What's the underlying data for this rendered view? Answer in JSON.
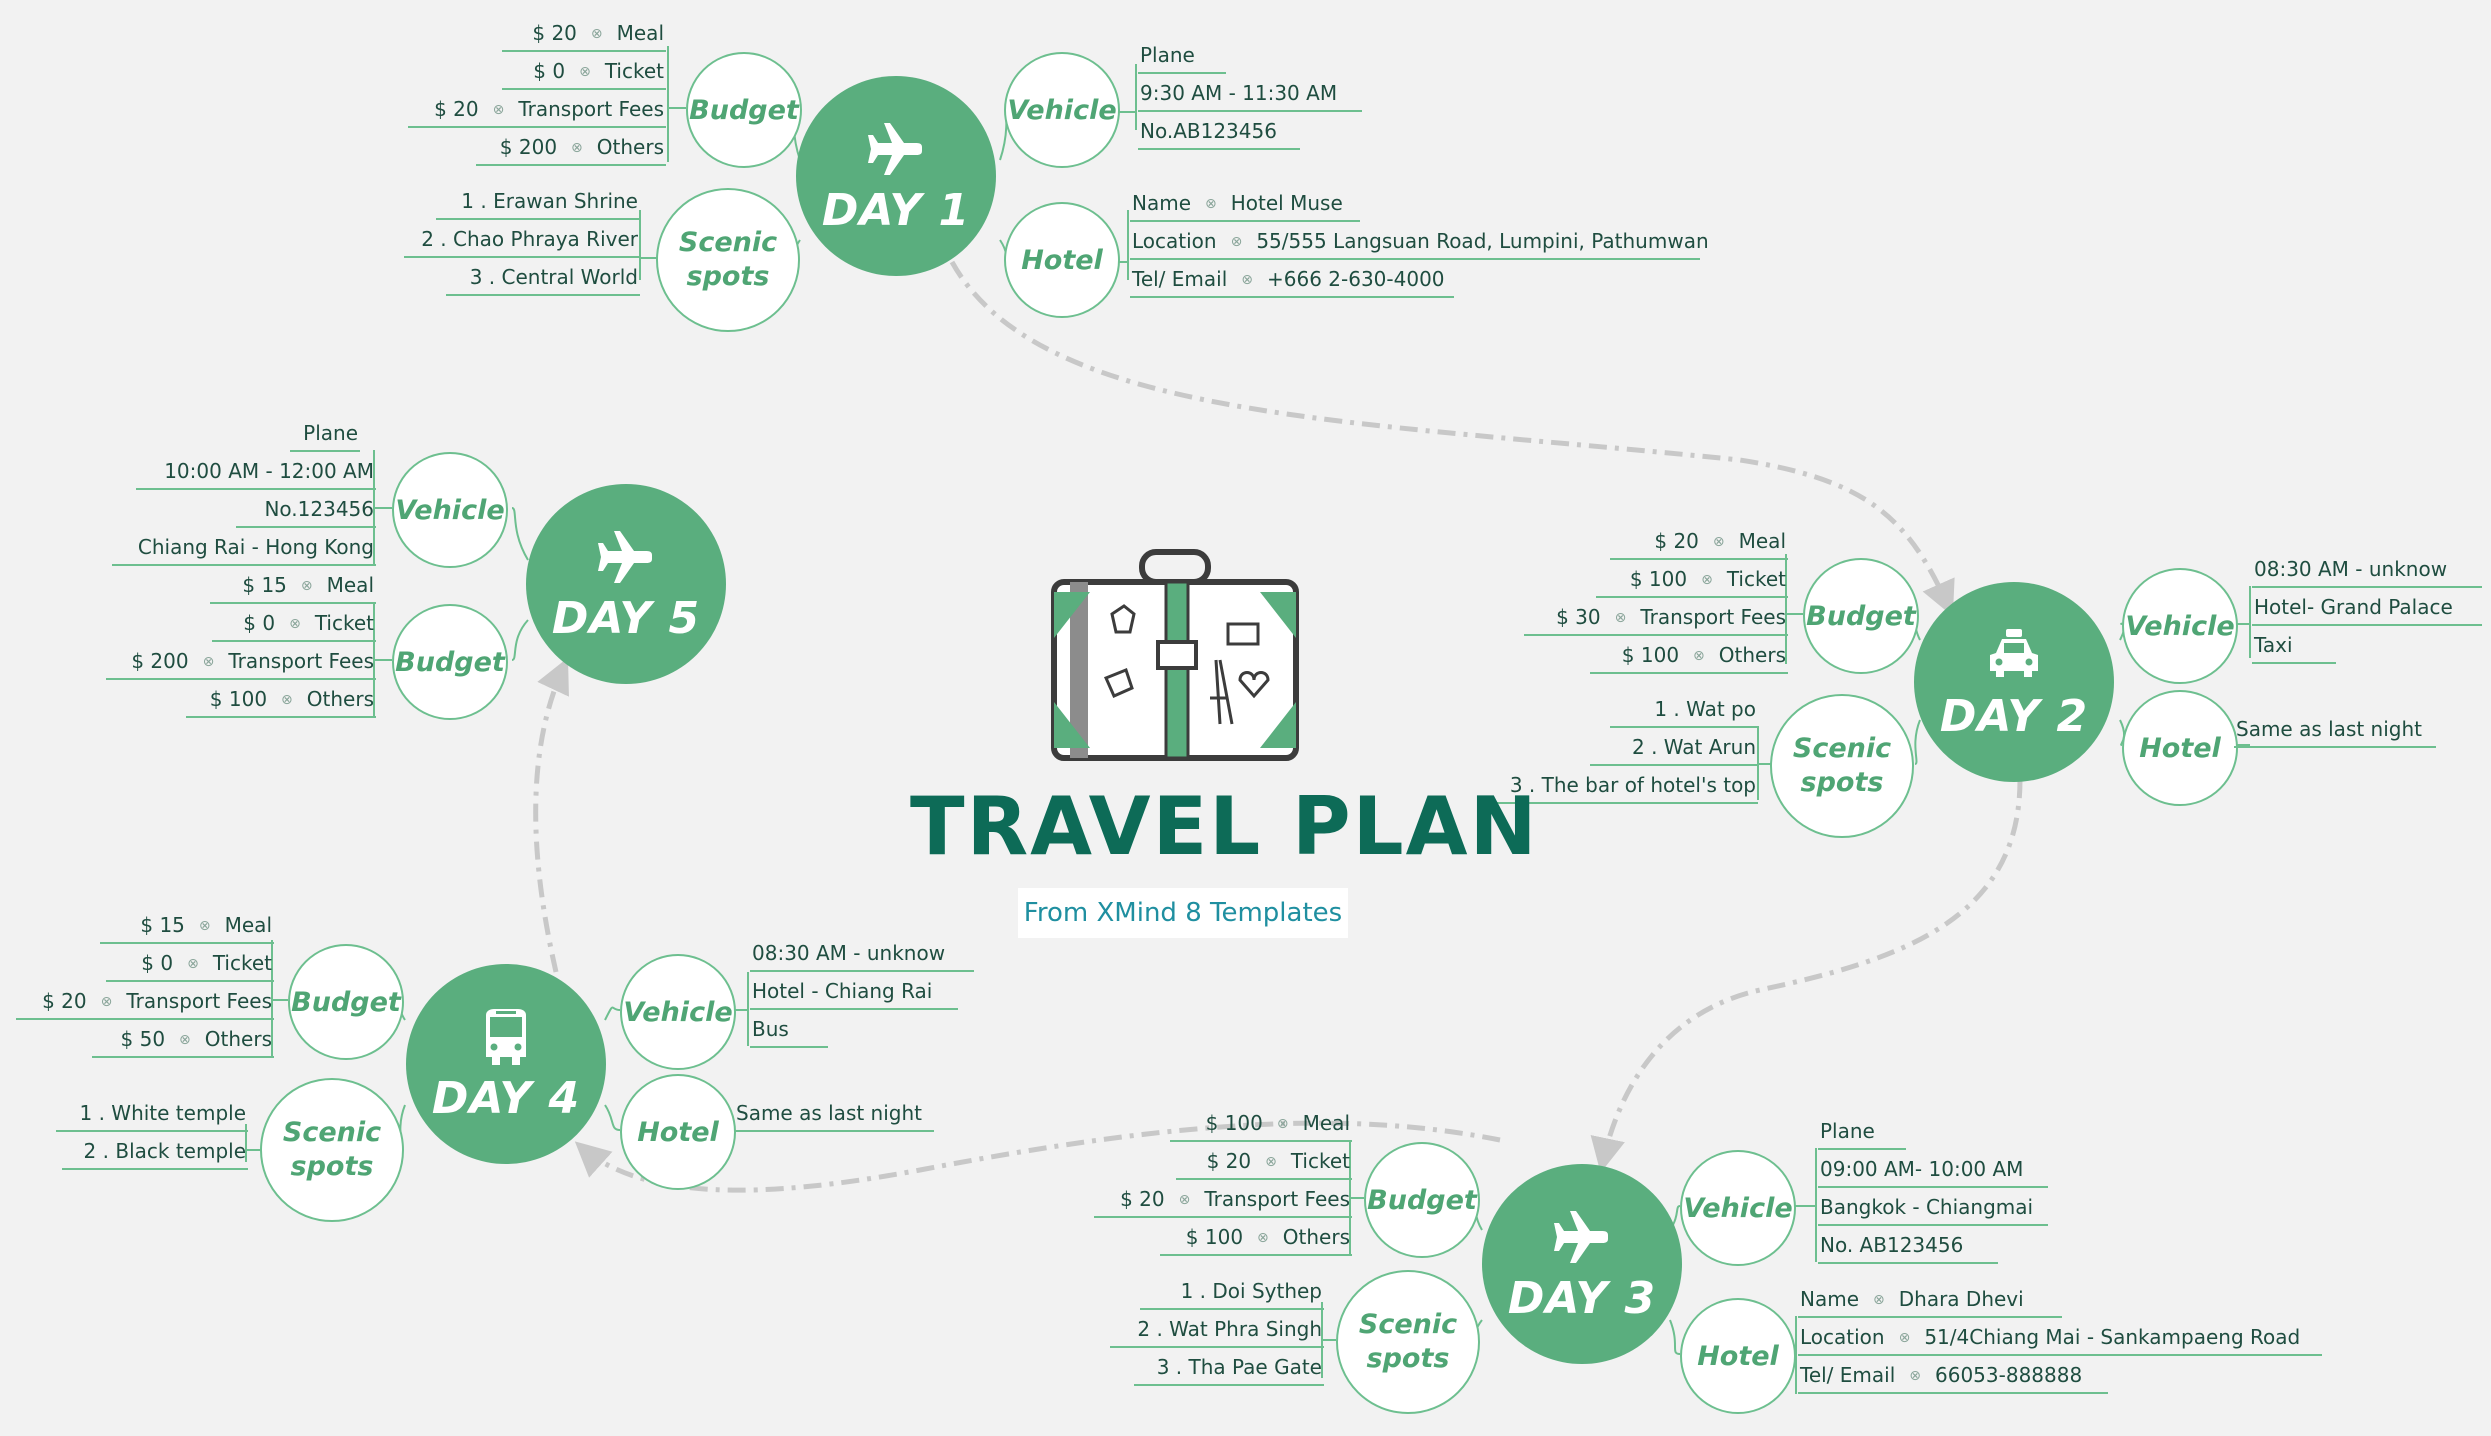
{
  "central": {
    "title": "TRAVEL PLAN",
    "subtitle": "From XMind 8 Templates",
    "icon": "suitcase-icon"
  },
  "colors": {
    "background": "#f2f2f2",
    "day_fill": "#5aae7e",
    "category_text": "#4fa574",
    "line": "#6dbf8f",
    "title": "#0d6b57",
    "subtitle": "#1f8fa0",
    "connector": "#c8c8c8"
  },
  "days": [
    {
      "label": "DAY 1",
      "icon": "plane-icon",
      "vehicle": {
        "label": "Vehicle",
        "items": [
          "Plane",
          "9:30 AM - 11:30 AM",
          "No.AB123456"
        ]
      },
      "hotel": {
        "label": "Hotel",
        "items": [
          [
            "Name",
            "Hotel Muse"
          ],
          [
            "Location",
            "55/555 Langsuan Road, Lumpini, Pathumwan"
          ],
          [
            "Tel/ Email",
            "+666 2-630-4000"
          ]
        ]
      },
      "budget": {
        "label": "Budget",
        "items": [
          [
            "$ 20",
            "Meal"
          ],
          [
            "$ 0",
            "Ticket"
          ],
          [
            "$ 20",
            "Transport Fees"
          ],
          [
            "$ 200",
            "Others"
          ]
        ]
      },
      "scenic": {
        "label_line1": "Scenic",
        "label_line2": "spots",
        "items": [
          "1 . Erawan Shrine",
          "2 . Chao Phraya River",
          "3 . Central World"
        ]
      }
    },
    {
      "label": "DAY 2",
      "icon": "taxi-icon",
      "vehicle": {
        "label": "Vehicle",
        "items": [
          "08:30 AM - unknow",
          "Hotel- Grand Palace",
          "Taxi"
        ]
      },
      "hotel": {
        "label": "Hotel",
        "items": [
          "Same as last night"
        ]
      },
      "budget": {
        "label": "Budget",
        "items": [
          [
            "$ 20",
            "Meal"
          ],
          [
            "$ 100",
            "Ticket"
          ],
          [
            "$ 30",
            "Transport Fees"
          ],
          [
            "$ 100",
            "Others"
          ]
        ]
      },
      "scenic": {
        "label_line1": "Scenic",
        "label_line2": "spots",
        "items": [
          "1 . Wat po",
          "2 . Wat Arun",
          "3 . The bar of hotel's top"
        ]
      }
    },
    {
      "label": "DAY 3",
      "icon": "plane-icon",
      "vehicle": {
        "label": "Vehicle",
        "items": [
          "Plane",
          "09:00 AM- 10:00 AM",
          "Bangkok - Chiangmai",
          "No. AB123456"
        ]
      },
      "hotel": {
        "label": "Hotel",
        "items": [
          [
            "Name",
            "Dhara Dhevi"
          ],
          [
            "Location",
            "51/4Chiang Mai - Sankampaeng Road"
          ],
          [
            "Tel/ Email",
            "66053-888888"
          ]
        ]
      },
      "budget": {
        "label": "Budget",
        "items": [
          [
            "$ 100",
            "Meal"
          ],
          [
            "$ 20",
            "Ticket"
          ],
          [
            "$ 20",
            "Transport Fees"
          ],
          [
            "$ 100",
            "Others"
          ]
        ]
      },
      "scenic": {
        "label_line1": "Scenic",
        "label_line2": "spots",
        "items": [
          "1 . Doi Sythep",
          "2 . Wat Phra Singh",
          "3 . Tha Pae Gate"
        ]
      }
    },
    {
      "label": "DAY 4",
      "icon": "bus-icon",
      "vehicle": {
        "label": "Vehicle",
        "items": [
          "08:30 AM - unknow",
          "Hotel - Chiang Rai",
          "Bus"
        ]
      },
      "hotel": {
        "label": "Hotel",
        "items": [
          "Same as last night"
        ]
      },
      "budget": {
        "label": "Budget",
        "items": [
          [
            "$ 15",
            "Meal"
          ],
          [
            "$ 0",
            "Ticket"
          ],
          [
            "$ 20",
            "Transport Fees"
          ],
          [
            "$ 50",
            "Others"
          ]
        ]
      },
      "scenic": {
        "label_line1": "Scenic",
        "label_line2": "spots",
        "items": [
          "1 . White temple",
          "2 . Black temple"
        ]
      }
    },
    {
      "label": "DAY 5",
      "icon": "plane-icon",
      "vehicle": {
        "label": "Vehicle",
        "items": [
          "Plane",
          "10:00 AM - 12:00 AM",
          "No.123456",
          "Chiang Rai - Hong Kong"
        ]
      },
      "budget": {
        "label": "Budget",
        "items": [
          [
            "$ 15",
            "Meal"
          ],
          [
            "$ 0",
            "Ticket"
          ],
          [
            "$ 200",
            "Transport Fees"
          ],
          [
            "$ 100",
            "Others"
          ]
        ]
      }
    }
  ]
}
